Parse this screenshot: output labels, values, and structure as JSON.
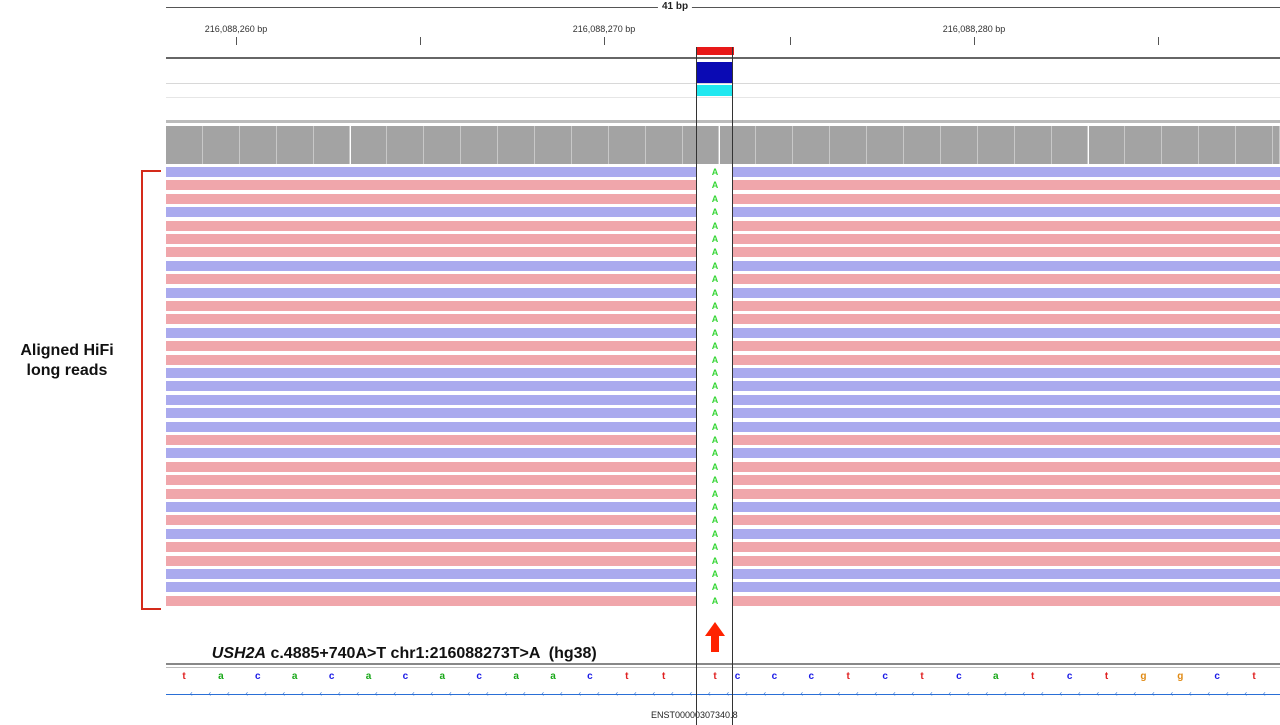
{
  "ruler": {
    "span_label": "41 bp",
    "positions": [
      "216,088,260 bp",
      "216,088,270 bp",
      "216,088,280 bp"
    ]
  },
  "panel_label": {
    "line1": "Aligned HiFi",
    "line2": "long reads"
  },
  "variant": {
    "gene": "USH2A",
    "rest": " c.4885+740A>T chr1:216088273T>A  (hg38)",
    "allele": "A",
    "ref_base": "t"
  },
  "reads": {
    "count": 33,
    "strands": [
      "f",
      "r",
      "r",
      "f",
      "r",
      "r",
      "r",
      "f",
      "r",
      "f",
      "r",
      "r",
      "f",
      "r",
      "r",
      "f",
      "f",
      "f",
      "f",
      "f",
      "r",
      "f",
      "r",
      "r",
      "r",
      "f",
      "r",
      "f",
      "r",
      "r",
      "f",
      "f",
      "r"
    ]
  },
  "sequence": [
    "t",
    "a",
    "c",
    "a",
    "c",
    "a",
    "c",
    "a",
    "c",
    "a",
    "a",
    "c",
    "t",
    "t",
    "t",
    "c",
    "c",
    "c",
    "t",
    "c",
    "t",
    "c",
    "a",
    "t",
    "c",
    "t",
    "g",
    "g",
    "c",
    "t"
  ],
  "transcript": "ENST00000307340.8",
  "colors": {
    "forward_read": "#aaaaee",
    "reverse_read": "#f0a6ab",
    "allele_A": "#36d636",
    "coverage_variant": "#00a000",
    "base_a": "#18a818",
    "base_c": "#1a1ae6",
    "base_g": "#e08a14",
    "base_t": "#e02020",
    "bracket": "#d42a1a",
    "arrow": "#ff2200"
  }
}
